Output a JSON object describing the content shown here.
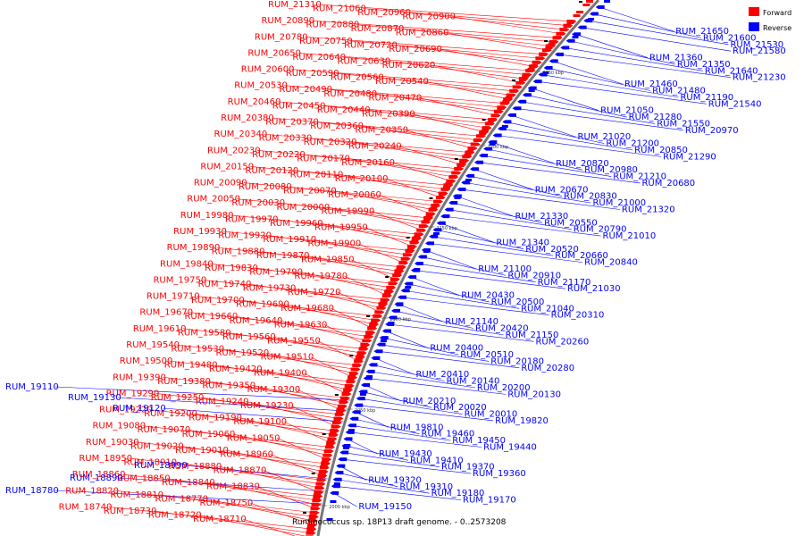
{
  "caption": "Ruminococcus sp. 18P13 draft genome. - 0..2573208",
  "colors": {
    "forward": "#ff0000",
    "reverse": "#0000ff",
    "backbone": "#777777",
    "other": "#000000"
  },
  "legend": [
    {
      "label": "Forward",
      "strand": "forward"
    },
    {
      "label": "Reverse",
      "strand": "reverse"
    }
  ],
  "scale_ticks": [
    "2000 kbp",
    "2050 kbp",
    "2100 kbp",
    "2150 kbp",
    "2200 kbp",
    "2250 kbp"
  ],
  "forward_genes": [
    "RUM_21310",
    "RUM_21060",
    "RUM_20960",
    "RUM_20900",
    "RUM_20890",
    "RUM_20880",
    "RUM_20870",
    "RUM_20860",
    "RUM_20780",
    "RUM_20750",
    "RUM_20720",
    "RUM_20690",
    "RUM_20650",
    "RUM_20640",
    "RUM_20630",
    "RUM_20620",
    "RUM_20600",
    "RUM_20590",
    "RUM_20560",
    "RUM_20540",
    "RUM_20530",
    "RUM_20490",
    "RUM_20480",
    "RUM_20470",
    "RUM_20460",
    "RUM_20450",
    "RUM_20440",
    "RUM_20390",
    "RUM_20380",
    "RUM_20370",
    "RUM_20360",
    "RUM_20350",
    "RUM_20340",
    "RUM_20330",
    "RUM_20320",
    "RUM_20240",
    "RUM_20230",
    "RUM_20220",
    "RUM_20170",
    "RUM_20160",
    "RUM_20150",
    "RUM_20120",
    "RUM_20110",
    "RUM_20100",
    "RUM_20090",
    "RUM_20080",
    "RUM_20070",
    "RUM_20060",
    "RUM_20050",
    "RUM_20030",
    "RUM_20000",
    "RUM_19990",
    "RUM_19980",
    "RUM_19970",
    "RUM_19960",
    "RUM_19950",
    "RUM_19930",
    "RUM_19920",
    "RUM_19910",
    "RUM_19900",
    "RUM_19890",
    "RUM_19880",
    "RUM_19870",
    "RUM_19850",
    "RUM_19840",
    "RUM_19830",
    "RUM_19790",
    "RUM_19780",
    "RUM_19750",
    "RUM_19740",
    "RUM_19730",
    "RUM_19720",
    "RUM_19710",
    "RUM_19700",
    "RUM_19690",
    "RUM_19680",
    "RUM_19670",
    "RUM_19660",
    "RUM_19640",
    "RUM_19630",
    "RUM_19610",
    "RUM_19580",
    "RUM_19560",
    "RUM_19550",
    "RUM_19540",
    "RUM_19530",
    "RUM_19520",
    "RUM_19510",
    "RUM_19500",
    "RUM_19480",
    "RUM_19420",
    "RUM_19400",
    "RUM_19390",
    "RUM_19380",
    "RUM_19350",
    "RUM_19300",
    "RUM_19290",
    "RUM_19250",
    "RUM_19240",
    "RUM_19230",
    "RUM_19220",
    "RUM_19200",
    "RUM_19190",
    "RUM_19100",
    "RUM_19080",
    "RUM_19070",
    "RUM_19060",
    "RUM_19050",
    "RUM_19030",
    "RUM_19020",
    "RUM_19010",
    "RUM_18960",
    "RUM_18950",
    "RUM_18910",
    "RUM_18880",
    "RUM_18870",
    "RUM_18860",
    "RUM_18850",
    "RUM_18840",
    "RUM_18830",
    "RUM_18820",
    "RUM_18810",
    "RUM_18770",
    "RUM_18750",
    "RUM_18740",
    "RUM_18730",
    "RUM_18720",
    "RUM_18710"
  ],
  "reverse_genes": [
    "RUM_21650",
    "RUM_21600",
    "RUM_21530",
    "RUM_21580",
    "RUM_21360",
    "RUM_21350",
    "RUM_21640",
    "RUM_21230",
    "RUM_21460",
    "RUM_21480",
    "RUM_21190",
    "RUM_21540",
    "RUM_21050",
    "RUM_21280",
    "RUM_21550",
    "RUM_20970",
    "RUM_21020",
    "RUM_21200",
    "RUM_20850",
    "RUM_21290",
    "RUM_20820",
    "RUM_20980",
    "RUM_21210",
    "RUM_20680",
    "RUM_20670",
    "RUM_20830",
    "RUM_21000",
    "RUM_21320",
    "RUM_21330",
    "RUM_20550",
    "RUM_20790",
    "RUM_21010",
    "RUM_21340",
    "RUM_20520",
    "RUM_20660",
    "RUM_20840",
    "RUM_21100",
    "RUM_20910",
    "RUM_21170",
    "RUM_21030",
    "RUM_20430",
    "RUM_20500",
    "RUM_21040",
    "RUM_20310",
    "RUM_21140",
    "RUM_20420",
    "RUM_21150",
    "RUM_20260",
    "RUM_20400",
    "RUM_20510",
    "RUM_20180",
    "RUM_20280",
    "RUM_20410",
    "RUM_20140",
    "RUM_20200",
    "RUM_20130",
    "RUM_20210",
    "RUM_20020",
    "RUM_20010",
    "RUM_19820",
    "RUM_19810",
    "RUM_19460",
    "RUM_19450",
    "RUM_19440",
    "RUM_19430",
    "RUM_19410",
    "RUM_19370",
    "RUM_19360",
    "RUM_19320",
    "RUM_19310",
    "RUM_19180",
    "RUM_19170",
    "RUM_19150",
    "RUM_19110",
    "RUM_19130",
    "RUM_19120",
    "RUM_18990",
    "RUM_18890",
    "RUM_18780"
  ]
}
